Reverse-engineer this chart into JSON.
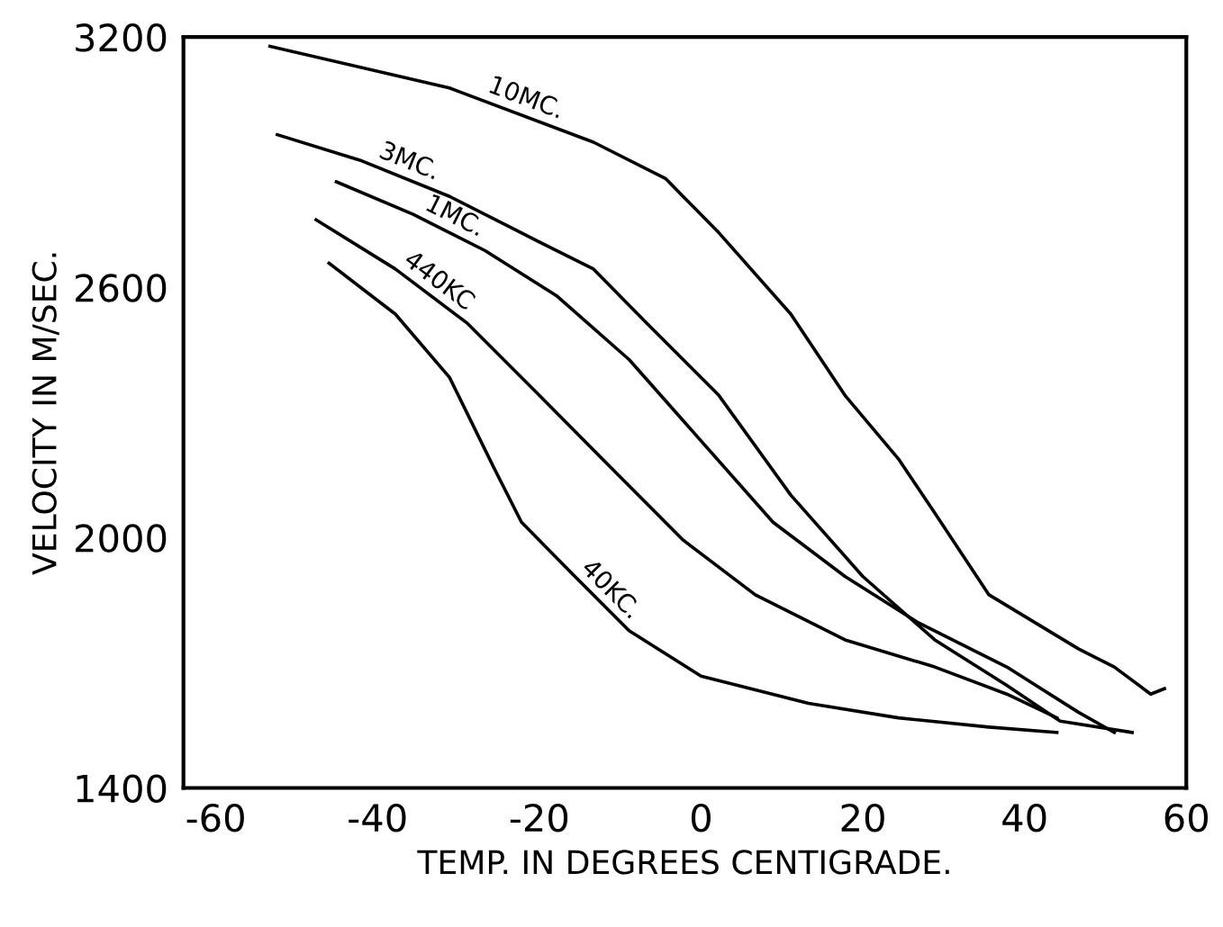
{
  "chart_data": {
    "type": "line",
    "xlabel": "TEMP. IN DEGREES CENTIGRADE.",
    "ylabel": "VELOCITY IN M/SEC.",
    "xlim": [
      -64,
      60
    ],
    "ylim": [
      1400,
      3200
    ],
    "xticks": [
      -60,
      -40,
      -20,
      0,
      20,
      40,
      60
    ],
    "yticks": [
      1400,
      2000,
      2600,
      3200
    ],
    "grid": false,
    "legend": false,
    "marker": "none",
    "line_style": "solid",
    "series": [
      {
        "name": "10MC.",
        "color": "#000000",
        "x": [
          -53.3,
          -31.1,
          -13.3,
          -4.4,
          2.2,
          11.1,
          17.8,
          24.4,
          28.9,
          35.6,
          46.7,
          51.1,
          55.6,
          57.3
        ],
        "values": [
          3178,
          3078,
          2948,
          2861,
          2731,
          2536,
          2341,
          2189,
          2059,
          1863,
          1733,
          1690,
          1625,
          1638
        ]
      },
      {
        "name": "3MC.",
        "color": "#000000",
        "x": [
          -52.4,
          -42.2,
          -31.1,
          -20,
          -13.3,
          -6.7,
          2.2,
          11.1,
          20,
          28.9,
          37.8,
          44.4,
          53.3
        ],
        "values": [
          2966,
          2905,
          2818,
          2709,
          2644,
          2514,
          2341,
          2102,
          1907,
          1755,
          1646,
          1560,
          1533
        ]
      },
      {
        "name": "1MC.",
        "color": "#000000",
        "x": [
          -45.1,
          -35.6,
          -26.7,
          -17.8,
          -8.9,
          0,
          8.9,
          17.8,
          26.7,
          37.8,
          46.7,
          51.1
        ],
        "values": [
          2853,
          2775,
          2688,
          2579,
          2427,
          2232,
          2037,
          1907,
          1798,
          1690,
          1581,
          1533
        ]
      },
      {
        "name": "440KC",
        "color": "#000000",
        "x": [
          -47.6,
          -37.8,
          -28.9,
          -20,
          -11.1,
          -2.2,
          6.7,
          17.8,
          28.9,
          37.8,
          44
        ],
        "values": [
          2762,
          2644,
          2514,
          2341,
          2167,
          1994,
          1863,
          1755,
          1690,
          1625,
          1568
        ]
      },
      {
        "name": "40KC.",
        "color": "#000000",
        "x": [
          -46,
          -37.8,
          -31.1,
          -25.6,
          -22.2,
          -15.6,
          -8.9,
          0,
          13.3,
          24.4,
          35.6,
          44
        ],
        "values": [
          2658,
          2536,
          2384,
          2167,
          2037,
          1907,
          1777,
          1668,
          1603,
          1568,
          1546,
          1533
        ]
      }
    ]
  }
}
